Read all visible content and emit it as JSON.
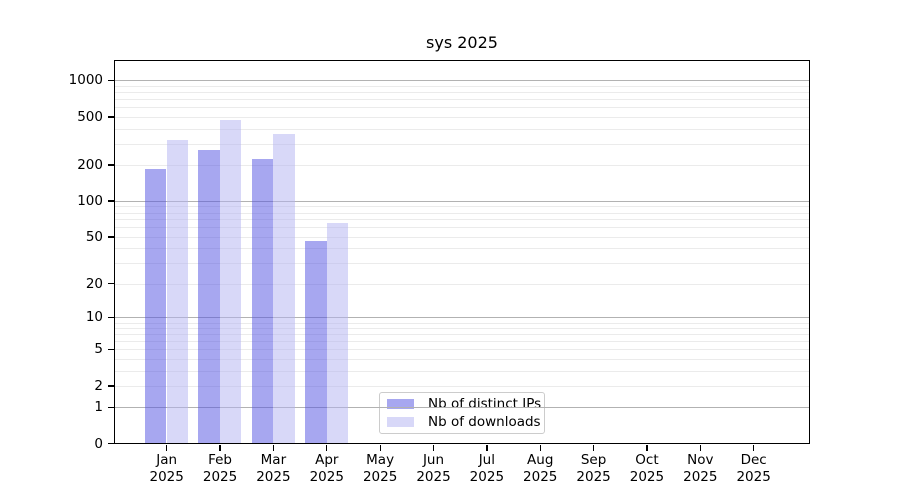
{
  "chart_data": {
    "type": "bar",
    "title": "sys 2025",
    "year": "2025",
    "categories": [
      "Jan",
      "Feb",
      "Mar",
      "Apr",
      "May",
      "Jun",
      "Jul",
      "Aug",
      "Sep",
      "Oct",
      "Nov",
      "Dec"
    ],
    "series": [
      {
        "name": "Nb of distinct IPs",
        "swatch": "#a7a7f0",
        "fill": "rgba(80,80,226,0.5)",
        "values": [
          185,
          265,
          225,
          46,
          0,
          0,
          0,
          0,
          0,
          0,
          0,
          0
        ]
      },
      {
        "name": "Nb of downloads",
        "swatch": "#d8d8f8",
        "fill": "rgba(177,177,241,0.5)",
        "values": [
          320,
          470,
          360,
          66,
          0,
          0,
          0,
          0,
          0,
          0,
          0,
          0
        ]
      }
    ],
    "y_scale": "log10(1+v)",
    "ylim": [
      0,
      1470
    ],
    "y_ticks": [
      0,
      1,
      2,
      5,
      10,
      20,
      50,
      100,
      200,
      500,
      1000
    ],
    "y_tick_labels": [
      "0",
      "1",
      "2",
      "5",
      "10",
      "20",
      "50",
      "100",
      "200",
      "500",
      "1000"
    ],
    "y_major_grid": [
      1,
      10,
      100,
      1000
    ],
    "y_minor_grid": [
      2,
      3,
      4,
      5,
      6,
      7,
      8,
      9,
      20,
      30,
      40,
      50,
      60,
      70,
      80,
      90,
      200,
      300,
      400,
      500,
      600,
      700,
      800,
      900
    ],
    "grid": true,
    "legend_position": "lower center"
  }
}
